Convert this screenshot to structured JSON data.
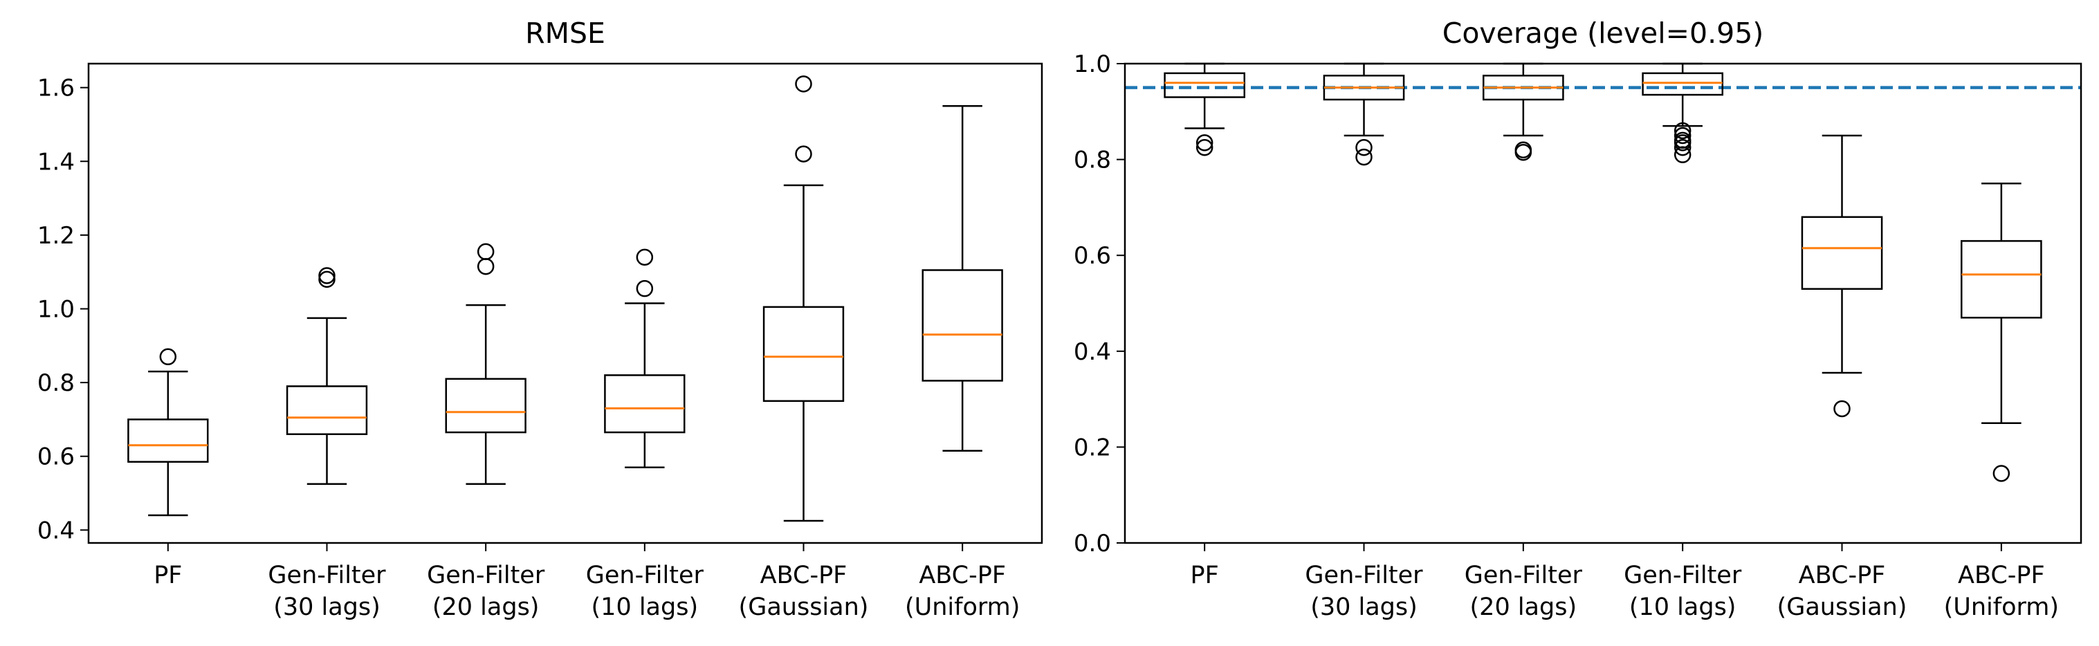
{
  "chart_data": [
    {
      "type": "boxplot",
      "title": "RMSE",
      "xlabel": "",
      "ylabel": "",
      "ylim": [
        0.365,
        1.665
      ],
      "yticks": [
        0.4,
        0.6,
        0.8,
        1.0,
        1.2,
        1.4,
        1.6
      ],
      "ytick_labels": [
        "0.4",
        "0.6",
        "0.8",
        "1.0",
        "1.2",
        "1.4",
        "1.6"
      ],
      "categories": [
        [
          "PF"
        ],
        [
          "Gen-Filter",
          "(30 lags)"
        ],
        [
          "Gen-Filter",
          "(20 lags)"
        ],
        [
          "Gen-Filter",
          "(10 lags)"
        ],
        [
          "ABC-PF",
          "(Gaussian)"
        ],
        [
          "ABC-PF",
          "(Uniform)"
        ]
      ],
      "boxes": [
        {
          "min": 0.44,
          "q1": 0.585,
          "median": 0.63,
          "q3": 0.7,
          "max": 0.83,
          "outliers": [
            0.87
          ]
        },
        {
          "min": 0.525,
          "q1": 0.66,
          "median": 0.705,
          "q3": 0.79,
          "max": 0.975,
          "outliers": [
            1.08,
            1.09
          ]
        },
        {
          "min": 0.525,
          "q1": 0.665,
          "median": 0.72,
          "q3": 0.81,
          "max": 1.01,
          "outliers": [
            1.115,
            1.155
          ]
        },
        {
          "min": 0.57,
          "q1": 0.665,
          "median": 0.73,
          "q3": 0.82,
          "max": 1.015,
          "outliers": [
            1.055,
            1.14
          ]
        },
        {
          "min": 0.425,
          "q1": 0.75,
          "median": 0.87,
          "q3": 1.005,
          "max": 1.335,
          "outliers": [
            1.42,
            1.61
          ]
        },
        {
          "min": 0.615,
          "q1": 0.805,
          "median": 0.93,
          "q3": 1.105,
          "max": 1.55,
          "outliers": []
        }
      ]
    },
    {
      "type": "boxplot",
      "title": "Coverage (level=0.95)",
      "xlabel": "",
      "ylabel": "",
      "ylim": [
        0.0,
        1.0
      ],
      "yticks": [
        0.0,
        0.2,
        0.4,
        0.6,
        0.8,
        1.0
      ],
      "ytick_labels": [
        "0.0",
        "0.2",
        "0.4",
        "0.6",
        "0.8",
        "1.0"
      ],
      "reference_line": 0.95,
      "categories": [
        [
          "PF"
        ],
        [
          "Gen-Filter",
          "(30 lags)"
        ],
        [
          "Gen-Filter",
          "(20 lags)"
        ],
        [
          "Gen-Filter",
          "(10 lags)"
        ],
        [
          "ABC-PF",
          "(Gaussian)"
        ],
        [
          "ABC-PF",
          "(Uniform)"
        ]
      ],
      "boxes": [
        {
          "min": 0.865,
          "q1": 0.93,
          "median": 0.96,
          "q3": 0.98,
          "max": 1.0,
          "outliers": [
            0.825,
            0.835
          ]
        },
        {
          "min": 0.85,
          "q1": 0.925,
          "median": 0.95,
          "q3": 0.975,
          "max": 1.0,
          "outliers": [
            0.805,
            0.825
          ]
        },
        {
          "min": 0.85,
          "q1": 0.925,
          "median": 0.95,
          "q3": 0.975,
          "max": 1.0,
          "outliers": [
            0.815,
            0.82
          ]
        },
        {
          "min": 0.87,
          "q1": 0.935,
          "median": 0.96,
          "q3": 0.98,
          "max": 1.0,
          "outliers": [
            0.81,
            0.825,
            0.835,
            0.84,
            0.85,
            0.86
          ]
        },
        {
          "min": 0.355,
          "q1": 0.53,
          "median": 0.615,
          "q3": 0.68,
          "max": 0.85,
          "outliers": [
            0.28
          ]
        },
        {
          "min": 0.25,
          "q1": 0.47,
          "median": 0.56,
          "q3": 0.63,
          "max": 0.75,
          "outliers": [
            0.145
          ]
        }
      ]
    }
  ],
  "colors": {
    "box": "#000000",
    "median": "#ff7f0e",
    "reference": "#1f77b4"
  }
}
